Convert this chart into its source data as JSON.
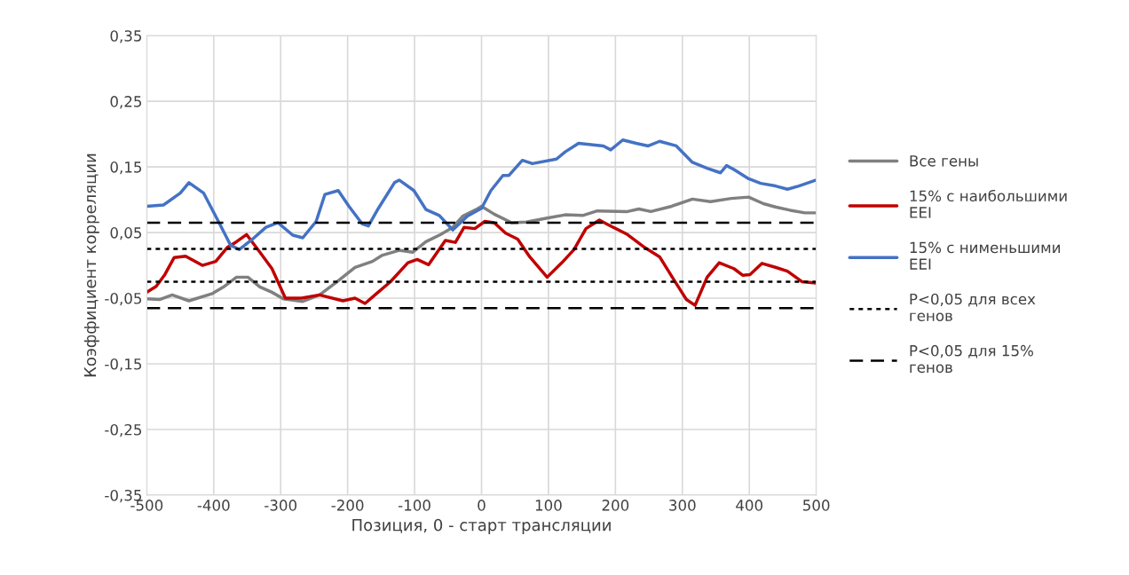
{
  "chart_data": {
    "type": "line",
    "xlabel": "Позиция, 0 - старт трансляции",
    "ylabel": "Коэффициент корреляции",
    "series": [
      {
        "name": "Все гены",
        "color": "#808080",
        "x": [
          -500,
          -481,
          -462,
          -437,
          -402,
          -384,
          -366,
          -349,
          -331,
          -313,
          -296,
          -267,
          -242,
          -216,
          -189,
          -163,
          -149,
          -123,
          -103,
          -83,
          -61,
          -43,
          -28,
          -8,
          0,
          19,
          45,
          67,
          98,
          125,
          151,
          173,
          218,
          235,
          253,
          284,
          315,
          342,
          373,
          399,
          421,
          439,
          461,
          483,
          500
        ],
        "values": [
          -0.051,
          -0.052,
          -0.045,
          -0.054,
          -0.043,
          -0.032,
          -0.018,
          -0.018,
          -0.033,
          -0.041,
          -0.051,
          -0.055,
          -0.045,
          -0.025,
          -0.003,
          0.006,
          0.015,
          0.023,
          0.02,
          0.036,
          0.047,
          0.058,
          0.075,
          0.085,
          0.09,
          0.078,
          0.065,
          0.066,
          0.072,
          0.077,
          0.076,
          0.083,
          0.082,
          0.086,
          0.082,
          0.09,
          0.101,
          0.097,
          0.102,
          0.104,
          0.094,
          0.089,
          0.084,
          0.08,
          0.08
        ]
      },
      {
        "name": "15% с наибольшими\nEEI",
        "color": "#c00000",
        "x": [
          -500,
          -486,
          -473,
          -459,
          -442,
          -417,
          -397,
          -380,
          -366,
          -351,
          -331,
          -313,
          -293,
          -269,
          -242,
          -207,
          -189,
          -174,
          -158,
          -136,
          -110,
          -96,
          -79,
          -54,
          -39,
          -26,
          -10,
          5,
          19,
          36,
          54,
          72,
          98,
          120,
          138,
          156,
          176,
          191,
          218,
          244,
          266,
          288,
          306,
          319,
          337,
          355,
          377,
          390,
          401,
          419,
          439,
          457,
          479,
          500
        ],
        "values": [
          -0.041,
          -0.032,
          -0.014,
          0.012,
          0.014,
          0.0,
          0.006,
          0.027,
          0.036,
          0.047,
          0.02,
          -0.005,
          -0.05,
          -0.05,
          -0.045,
          -0.054,
          -0.05,
          -0.058,
          -0.044,
          -0.025,
          0.004,
          0.009,
          0.001,
          0.038,
          0.035,
          0.058,
          0.056,
          0.067,
          0.065,
          0.049,
          0.04,
          0.013,
          -0.018,
          0.004,
          0.024,
          0.056,
          0.069,
          0.061,
          0.047,
          0.027,
          0.013,
          -0.023,
          -0.052,
          -0.061,
          -0.018,
          0.004,
          -0.005,
          -0.015,
          -0.014,
          0.003,
          -0.003,
          -0.009,
          -0.025,
          -0.027
        ]
      },
      {
        "name": "15% с нименьшими\nEEI",
        "color": "#4472c4",
        "x": [
          -500,
          -475,
          -450,
          -437,
          -415,
          -393,
          -375,
          -362,
          -342,
          -322,
          -304,
          -282,
          -267,
          -247,
          -234,
          -214,
          -198,
          -178,
          -169,
          -154,
          -130,
          -123,
          -101,
          -83,
          -63,
          -43,
          -21,
          0,
          14,
          32,
          41,
          61,
          76,
          112,
          125,
          145,
          182,
          193,
          211,
          231,
          249,
          266,
          291,
          315,
          337,
          357,
          366,
          377,
          399,
          417,
          439,
          457,
          474,
          500
        ],
        "values": [
          0.09,
          0.092,
          0.11,
          0.126,
          0.11,
          0.067,
          0.031,
          0.024,
          0.04,
          0.058,
          0.065,
          0.046,
          0.042,
          0.067,
          0.108,
          0.114,
          0.09,
          0.063,
          0.06,
          0.087,
          0.126,
          0.13,
          0.114,
          0.085,
          0.076,
          0.054,
          0.075,
          0.087,
          0.114,
          0.137,
          0.137,
          0.16,
          0.155,
          0.162,
          0.173,
          0.186,
          0.182,
          0.176,
          0.191,
          0.186,
          0.182,
          0.189,
          0.182,
          0.157,
          0.148,
          0.141,
          0.152,
          0.146,
          0.132,
          0.125,
          0.121,
          0.116,
          0.121,
          0.13
        ]
      }
    ],
    "ref_lines": [
      {
        "axis": "y",
        "value": 0.025,
        "label": "P<0,05 для всех\nгенов",
        "color": "#000000",
        "line_style": "dotted"
      },
      {
        "axis": "y",
        "value": -0.025,
        "color": "#000000",
        "line_style": "dotted"
      },
      {
        "axis": "y",
        "value": 0.065,
        "label": "P<0,05 для 15%\nгенов",
        "color": "#000000",
        "line_style": "dashed"
      },
      {
        "axis": "y",
        "value": -0.065,
        "color": "#000000",
        "line_style": "dashed"
      }
    ],
    "xlim": [
      -500,
      500
    ],
    "xticks": [
      -500,
      -400,
      -300,
      -200,
      -100,
      0,
      100,
      200,
      300,
      400,
      500
    ],
    "ylim": [
      -0.35,
      0.35
    ],
    "yticks": [
      {
        "value": -0.35,
        "label": "-0,35"
      },
      {
        "value": -0.25,
        "label": "-0,25"
      },
      {
        "value": -0.15,
        "label": "-0,15"
      },
      {
        "value": -0.05,
        "label": "-0,05"
      },
      {
        "value": 0.05,
        "label": "0,05"
      },
      {
        "value": 0.15,
        "label": "0,15"
      },
      {
        "value": 0.25,
        "label": "0,25"
      },
      {
        "value": 0.35,
        "label": "0,35"
      }
    ],
    "grid": true,
    "legend": "right",
    "marker": "none",
    "line_style": "solid"
  }
}
